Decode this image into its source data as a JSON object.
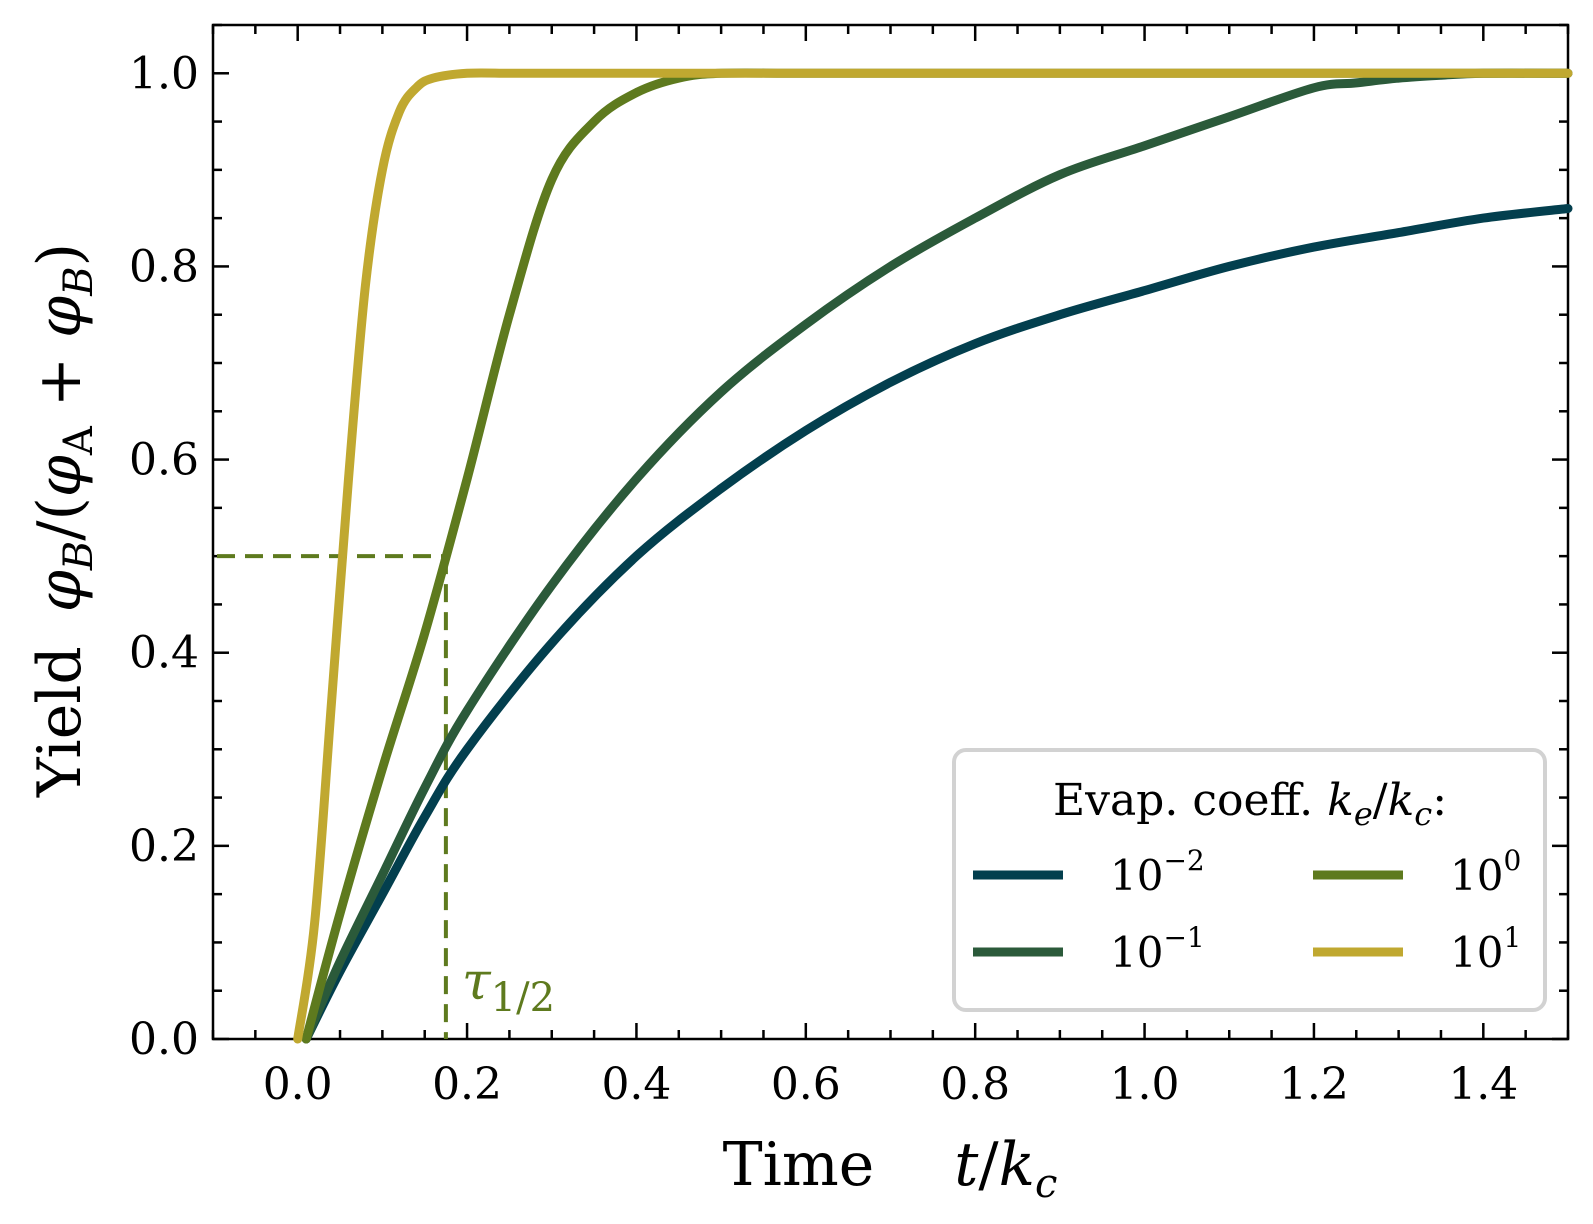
{
  "chart_data": {
    "type": "line",
    "xlabel": {
      "word": "Time",
      "var": "t",
      "slash": "/",
      "k": "k",
      "sub": "c"
    },
    "ylabel": {
      "word": "Yield",
      "phi1": "φ",
      "sub1": "B",
      "mid": "/(",
      "phi2": "φ",
      "sub2": "A",
      "plus": " + ",
      "phi3": "φ",
      "sub3": "B",
      "close": ")"
    },
    "xlim": [
      -0.1,
      1.5
    ],
    "ylim": [
      0,
      1.05
    ],
    "x_ticks": [
      0.0,
      0.2,
      0.4,
      0.6,
      0.8,
      1.0,
      1.2,
      1.4
    ],
    "x_tick_labels": [
      "0.0",
      "0.2",
      "0.4",
      "0.6",
      "0.8",
      "1.0",
      "1.2",
      "1.4"
    ],
    "y_ticks": [
      0.0,
      0.2,
      0.4,
      0.6,
      0.8,
      1.0
    ],
    "y_tick_labels": [
      "0.0",
      "0.2",
      "0.4",
      "0.6",
      "0.8",
      "1.0"
    ],
    "legend": {
      "title": "Evap. coeff. ",
      "title_k1": "k",
      "title_sub1": "e",
      "title_slash": "/",
      "title_k2": "k",
      "title_sub2": "c",
      "title_colon": ":",
      "placement": "lower-right"
    },
    "series": [
      {
        "name": "1e-2",
        "label_base": "10",
        "label_exp": "−2",
        "color": "#033f4e",
        "x": [
          0.01,
          0.05,
          0.1,
          0.15,
          0.2,
          0.3,
          0.4,
          0.5,
          0.6,
          0.7,
          0.8,
          0.9,
          1.0,
          1.1,
          1.2,
          1.3,
          1.4,
          1.5
        ],
        "y": [
          0.0,
          0.07,
          0.15,
          0.23,
          0.3,
          0.41,
          0.5,
          0.57,
          0.63,
          0.68,
          0.72,
          0.75,
          0.775,
          0.8,
          0.82,
          0.835,
          0.85,
          0.86
        ]
      },
      {
        "name": "1e-1",
        "label_base": "10",
        "label_exp": "−1",
        "color": "#2b5a3a",
        "x": [
          0.01,
          0.05,
          0.1,
          0.15,
          0.2,
          0.3,
          0.4,
          0.5,
          0.6,
          0.7,
          0.8,
          0.9,
          1.0,
          1.1,
          1.2,
          1.25,
          1.3,
          1.35,
          1.4,
          1.5
        ],
        "y": [
          0.0,
          0.08,
          0.17,
          0.26,
          0.34,
          0.47,
          0.58,
          0.67,
          0.74,
          0.8,
          0.85,
          0.895,
          0.925,
          0.955,
          0.985,
          0.99,
          0.995,
          0.998,
          1.0,
          1.0
        ]
      },
      {
        "name": "1e0",
        "label_base": "10",
        "label_exp": "0",
        "color": "#5e7a1e",
        "x": [
          0.01,
          0.05,
          0.1,
          0.15,
          0.2,
          0.25,
          0.3,
          0.35,
          0.4,
          0.45,
          0.5,
          0.6,
          0.8,
          1.0,
          1.2,
          1.5
        ],
        "y": [
          0.0,
          0.13,
          0.28,
          0.42,
          0.58,
          0.75,
          0.89,
          0.95,
          0.98,
          0.995,
          1.0,
          1.0,
          1.0,
          1.0,
          1.0,
          1.0
        ]
      },
      {
        "name": "1e1",
        "label_base": "10",
        "label_exp": "1",
        "color": "#c0a830",
        "x": [
          0.0,
          0.02,
          0.04,
          0.06,
          0.08,
          0.1,
          0.12,
          0.14,
          0.16,
          0.2,
          0.25,
          0.3,
          0.4,
          0.6,
          1.0,
          1.5
        ],
        "y": [
          0.0,
          0.12,
          0.35,
          0.58,
          0.78,
          0.9,
          0.96,
          0.985,
          0.995,
          1.0,
          1.0,
          1.0,
          1.0,
          1.0,
          1.0,
          1.0
        ]
      }
    ],
    "annotations": [
      {
        "type": "half-time",
        "series": "1e0",
        "tau_x": 0.175,
        "y_level": 0.5,
        "label": "τ",
        "label_sub": "1/2",
        "color": "#5e7a1e"
      }
    ]
  }
}
